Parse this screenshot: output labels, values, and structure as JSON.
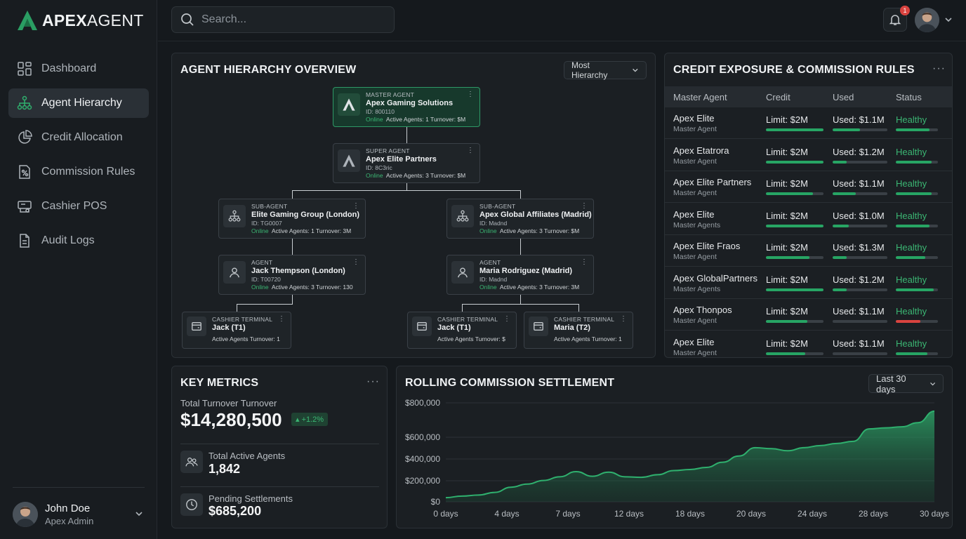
{
  "brand": {
    "name_bold": "APEX",
    "name_thin": "AGENT"
  },
  "nav": [
    {
      "label": "Dashboard",
      "icon": "dashboard-icon",
      "active": false
    },
    {
      "label": "Agent Hierarchy",
      "icon": "hierarchy-icon",
      "active": true
    },
    {
      "label": "Credit Allocation",
      "icon": "pie-chart-icon",
      "active": false
    },
    {
      "label": "Commission Rules",
      "icon": "commission-icon",
      "active": false
    },
    {
      "label": "Cashier POS",
      "icon": "pos-icon",
      "active": false
    },
    {
      "label": "Audit Logs",
      "icon": "document-icon",
      "active": false
    }
  ],
  "user": {
    "name": "John Doe",
    "role": "Apex Admin"
  },
  "search": {
    "placeholder": "Search..."
  },
  "notifications": {
    "count": "1"
  },
  "hierarchy": {
    "title": "AGENT HIERARCHY OVERVIEW",
    "filter": "Most Hierarchy",
    "master": {
      "type": "MASTER AGENT",
      "name": "Apex Gaming Solutions",
      "id": "ID: 800110",
      "status": "Online",
      "stats": "Active Agents: 1   Turnover: $M"
    },
    "super": {
      "type": "SUPER AGENT",
      "name": "Apex Elite Partners",
      "id": "ID: 8C3ric",
      "status": "Online",
      "stats": "Active Agents: 3   Turnover: $M"
    },
    "sub_left": {
      "type": "SUB-AGENT",
      "name": "Elite Gaming Group (London)",
      "id": "ID: TG0007",
      "status": "Online",
      "stats": "Active Agents: 1   Turnover: 3M"
    },
    "sub_right": {
      "type": "SUB-AGENT",
      "name": "Apex Global Affiliates (Madrid)",
      "id": "ID: Madnd",
      "status": "Online",
      "stats": "Active Agents: 3   Turnover: $M"
    },
    "agent_left": {
      "type": "AGENT",
      "name": "Jack Thempson (London)",
      "id": "ID: T00720",
      "status": "Online",
      "stats": "Active Agents: 3   Turnover: 130"
    },
    "agent_right": {
      "type": "AGENT",
      "name": "Maria Rodriguez (Madrid)",
      "id": "ID: Madnd",
      "status": "Online",
      "stats": "Active Agents: 3   Turnover: 3M"
    },
    "cashier1": {
      "type": "CASHIER TERMINAL",
      "name": "Jack (T1)",
      "stats": "Active Agents   Turnover: 1"
    },
    "cashier2": {
      "type": "CASHIER TERMINAL",
      "name": "Jack (T1)",
      "stats": "Active Agents   Turnover: $"
    },
    "cashier3": {
      "type": "CASHIER TERMINAL",
      "name": "Maria (T2)",
      "stats": "Active Agents   Turnover: 1"
    }
  },
  "credit": {
    "title": "CREDIT EXPOSURE & COMMISSION RULES",
    "headers": [
      "Master Agent",
      "Credit",
      "Used",
      "Status"
    ],
    "rows": [
      {
        "name": "Apex Elite",
        "sub": "Master Agent",
        "limit": "Limit: $2M",
        "used": "Used: $1.1M",
        "status": "Healthy",
        "credit_fill": 1.0,
        "used_fill": 0.5,
        "status_fill": 0.8,
        "status_color": "#27a564"
      },
      {
        "name": "Apex Etatrora",
        "sub": "Master Agent",
        "limit": "Limit: $2M",
        "used": "Used: $1.2M",
        "status": "Healthy",
        "credit_fill": 1.0,
        "used_fill": 0.25,
        "status_fill": 0.85,
        "status_color": "#27a564"
      },
      {
        "name": "Apex Elite Partners",
        "sub": "Master Agent",
        "limit": "Limit: $2M",
        "used": "Used: $1.1M",
        "status": "Healthy",
        "credit_fill": 0.82,
        "used_fill": 0.42,
        "status_fill": 0.85,
        "status_color": "#27a564"
      },
      {
        "name": "Apex Elite",
        "sub": "Master Agents",
        "limit": "Limit: $2M",
        "used": "Used: $1.0M",
        "status": "Healthy",
        "credit_fill": 1.0,
        "used_fill": 0.3,
        "status_fill": 0.8,
        "status_color": "#27a564"
      },
      {
        "name": "Apex Elite Fraos",
        "sub": "Master Agent",
        "limit": "Limit: $2M",
        "used": "Used: $1.3M",
        "status": "Healthy",
        "credit_fill": 0.75,
        "used_fill": 0.25,
        "status_fill": 0.7,
        "status_color": "#27a564"
      },
      {
        "name": "Apex GlobalPartners",
        "sub": "Master Agents",
        "limit": "Limit: $2M",
        "used": "Used: $1.2M",
        "status": "Healthy",
        "credit_fill": 1.0,
        "used_fill": 0.25,
        "status_fill": 0.9,
        "status_color": "#27a564"
      },
      {
        "name": "Apex Thonpos",
        "sub": "Master Agent",
        "limit": "Limit: $2M",
        "used": "Used: $1.1M",
        "status": "Healthy",
        "credit_fill": 0.72,
        "used_fill": 0.0,
        "status_fill": 0.58,
        "status_color": "#d9433f"
      },
      {
        "name": "Apex Elite",
        "sub": "Master Agent",
        "limit": "Limit: $2M",
        "used": "Used: $1.1M",
        "status": "Healthy",
        "credit_fill": 0.68,
        "used_fill": 0.0,
        "status_fill": 0.75,
        "status_color": "#27a564"
      }
    ]
  },
  "metrics": {
    "title": "KEY METRICS",
    "turnover_label": "Total Turnover Turnover",
    "turnover_value": "$14,280,500",
    "turnover_change": "+1.2%",
    "agents_label": "Total Active Agents",
    "agents_value": "1,842",
    "pending_label": "Pending Settlements",
    "pending_value": "$685,200"
  },
  "settlement": {
    "title": "ROLLING COMMISSION SETTLEMENT",
    "filter": "Last 30 days"
  },
  "chart_data": {
    "type": "area",
    "title": "ROLLING COMMISSION SETTLEMENT",
    "y_tick_labels": [
      "$800,000",
      "$600,000",
      "$400,000",
      "$200,000",
      "$0"
    ],
    "x_tick_labels": [
      "0 days",
      "4 days",
      "7 days",
      "12 days",
      "18 days",
      "20 days",
      "24 days",
      "28 days",
      "30 days"
    ],
    "series": [
      {
        "x": [
          0,
          1,
          2,
          3,
          4,
          5,
          6,
          7,
          8,
          9,
          10,
          11,
          12,
          13,
          14,
          15,
          16,
          17,
          18,
          19,
          20,
          21,
          22,
          23,
          24,
          25,
          26,
          27,
          28,
          29,
          30
        ],
        "y": [
          40000,
          55000,
          65000,
          90000,
          140000,
          170000,
          205000,
          240000,
          290000,
          245000,
          285000,
          240000,
          235000,
          260000,
          300000,
          310000,
          330000,
          380000,
          440000,
          520000,
          510000,
          490000,
          520000,
          540000,
          560000,
          580000,
          700000,
          710000,
          720000,
          760000,
          870000
        ],
        "color": "#2fb06e"
      }
    ],
    "ylim": [
      0,
      950000
    ],
    "grid": true
  }
}
